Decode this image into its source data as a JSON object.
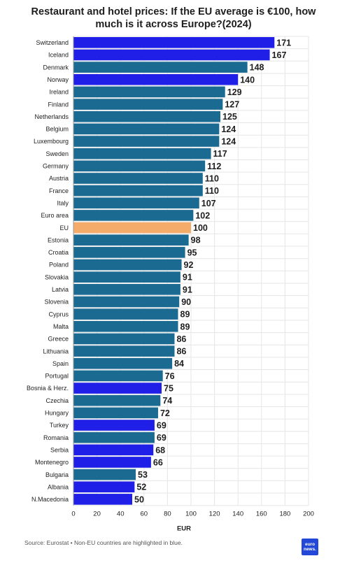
{
  "title_line1": "Restaurant and hotel prices: If the EU average is €100, how",
  "title_line2": "much is it across Europe?(2024)",
  "footer": "Source: Eurostat • Non-EU countries are highlighted in blue.",
  "logo": {
    "line1": "euro",
    "line2": "news."
  },
  "colors": {
    "eu": "#1b6a92",
    "non_eu": "#1f1fe8",
    "eu_average": "#f5ac6b",
    "grid": "#e6e6e6"
  },
  "chart_data": {
    "type": "bar",
    "orientation": "horizontal",
    "xlabel": "EUR",
    "xlim": [
      0,
      200
    ],
    "xticks": [
      0,
      20,
      40,
      60,
      80,
      100,
      120,
      140,
      160,
      180,
      200
    ],
    "grid": true,
    "categories": [
      "Switzerland",
      "Iceland",
      "Denmark",
      "Norway",
      "Ireland",
      "Finland",
      "Netherlands",
      "Belgium",
      "Luxembourg",
      "Sweden",
      "Germany",
      "Austria",
      "France",
      "Italy",
      "Euro area",
      "EU",
      "Estonia",
      "Croatia",
      "Poland",
      "Slovakia",
      "Latvia",
      "Slovenia",
      "Cyprus",
      "Malta",
      "Greece",
      "Lithuania",
      "Spain",
      "Portugal",
      "Bosnia & Herz.",
      "Czechia",
      "Hungary",
      "Turkey",
      "Romania",
      "Serbia",
      "Montenegro",
      "Bulgaria",
      "Albania",
      "N.Macedonia"
    ],
    "values": [
      171,
      167,
      148,
      140,
      129,
      127,
      125,
      124,
      124,
      117,
      112,
      110,
      110,
      107,
      102,
      100,
      98,
      95,
      92,
      91,
      91,
      90,
      89,
      89,
      86,
      86,
      84,
      76,
      75,
      74,
      72,
      69,
      69,
      68,
      66,
      53,
      52,
      50
    ],
    "groups": [
      "non_eu",
      "non_eu",
      "eu",
      "non_eu",
      "eu",
      "eu",
      "eu",
      "eu",
      "eu",
      "eu",
      "eu",
      "eu",
      "eu",
      "eu",
      "eu",
      "eu_average",
      "eu",
      "eu",
      "eu",
      "eu",
      "eu",
      "eu",
      "eu",
      "eu",
      "eu",
      "eu",
      "eu",
      "eu",
      "non_eu",
      "eu",
      "eu",
      "non_eu",
      "eu",
      "non_eu",
      "non_eu",
      "eu",
      "non_eu",
      "non_eu"
    ]
  }
}
